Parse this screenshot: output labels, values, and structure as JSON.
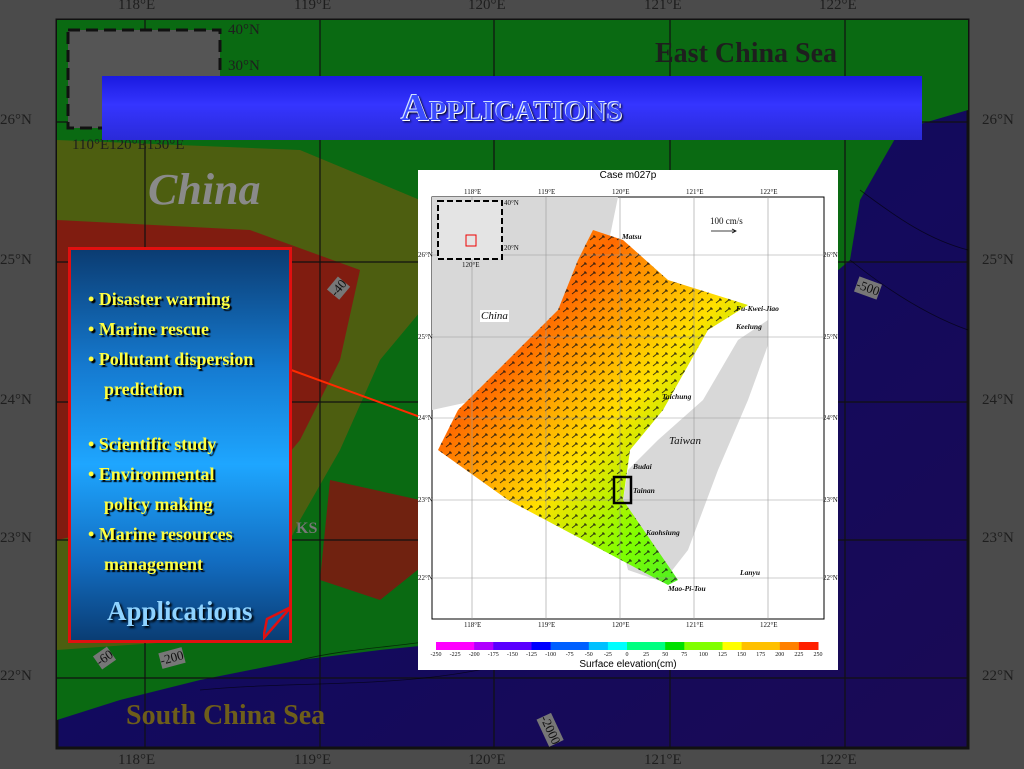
{
  "slide_title": "Applications",
  "background_map": {
    "top_lon_labels": [
      "118°E",
      "119°E",
      "120°E",
      "121°E",
      "122°E"
    ],
    "bottom_lon_labels": [
      "118°E",
      "119°E",
      "120°E",
      "121°E",
      "122°E"
    ],
    "left_lat_labels": [
      "26°N",
      "25°N",
      "24°N",
      "23°N",
      "22°N"
    ],
    "right_lat_labels": [
      "26°N",
      "25°N",
      "24°N",
      "23°N",
      "22°N"
    ],
    "inset_labels": {
      "lat": [
        "40°N",
        "30°N"
      ],
      "lon": "110°E120°E130°E"
    },
    "region_labels": {
      "east_china_sea": "East China Sea",
      "china": "China",
      "south_china_sea": "South China Sea",
      "partial_ks": "KS"
    },
    "contour_labels": [
      "-40",
      "-500",
      "-60",
      "-200",
      "-2000"
    ],
    "colors": {
      "sea": "#0c0c70",
      "shelf": "#0a6a12",
      "land_high": "#8a1010",
      "frame_bg": "#4b4b4b"
    }
  },
  "applications_box": {
    "items": [
      {
        "text": "• Disaster warning"
      },
      {
        "text": "• Marine rescue"
      },
      {
        "text": "• Pollutant dispersion"
      },
      {
        "text": "prediction",
        "continuation": true
      },
      {
        "text": "• Scientific study"
      },
      {
        "text": "• Environmental"
      },
      {
        "text": "policy making",
        "continuation": true
      },
      {
        "text": "• Marine resources"
      },
      {
        "text": "management",
        "continuation": true
      }
    ],
    "caption": "Applications",
    "colors": {
      "border": "#e01010",
      "text": "#ffff40",
      "caption": "#8fd3ff"
    }
  },
  "figure": {
    "title": "Case m027p",
    "lon_labels": [
      "118°E",
      "119°E",
      "120°E",
      "121°E",
      "122°E"
    ],
    "lat_labels": [
      "26°N",
      "25°N",
      "24°N",
      "23°N",
      "22°N"
    ],
    "inset": {
      "lat_labels": [
        "40°N",
        "20°N"
      ],
      "lon_label": "120°E"
    },
    "scale_arrow": "100 cm/s",
    "places": {
      "matsu": "Matsu",
      "china": "China",
      "fu_kwei_jiao": "Fu-Kwei-Jiao",
      "keelung": "Keelung",
      "taichung": "Taichung",
      "taiwan": "Taiwan",
      "budai": "Budai",
      "tainan": "Tainan",
      "kaohsiung": "Kaohsiung",
      "lanyu": "Lanyu",
      "mao_pi_tou": "Mao-Pi-Tou"
    },
    "colorbar": {
      "title": "Surface elevation(cm)",
      "ticks": [
        "-250",
        "-225",
        "-200",
        "-175",
        "-150",
        "-125",
        "-100",
        "-75",
        "-50",
        "-25",
        "0",
        "25",
        "50",
        "75",
        "100",
        "125",
        "150",
        "175",
        "200",
        "225",
        "250"
      ],
      "colors": [
        "#ff00ff",
        "#b000ff",
        "#5a00ff",
        "#0000ff",
        "#0060ff",
        "#00c0ff",
        "#00ffff",
        "#00ff80",
        "#00e000",
        "#80ff00",
        "#ffff00",
        "#ffc000",
        "#ff8000",
        "#ff2000"
      ]
    }
  }
}
